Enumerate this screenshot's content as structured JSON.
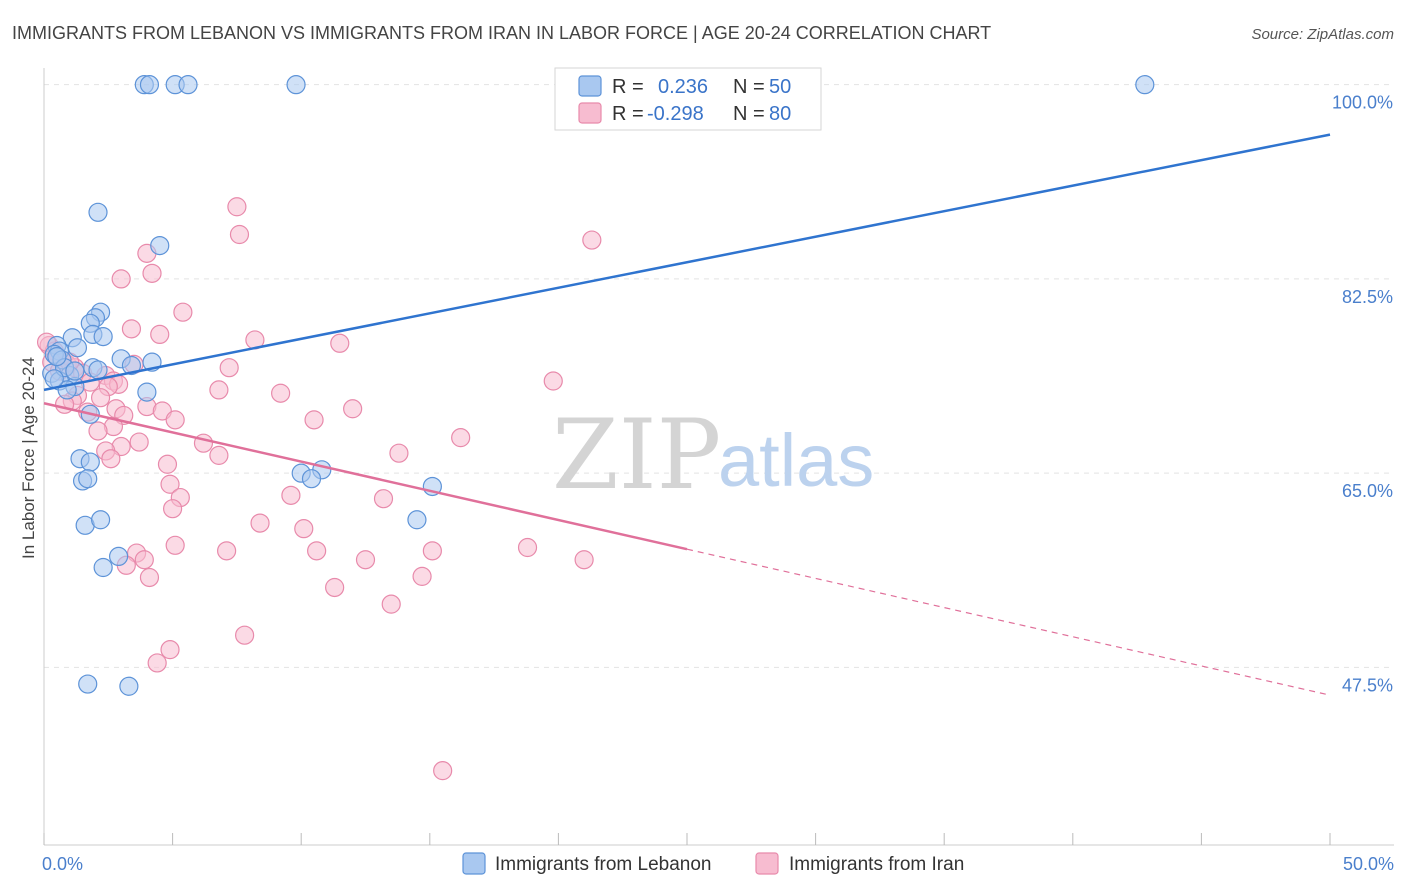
{
  "title": "IMMIGRANTS FROM LEBANON VS IMMIGRANTS FROM IRAN IN LABOR FORCE | AGE 20-24 CORRELATION CHART",
  "source": "Source: ZipAtlas.com",
  "watermark": {
    "zip": "ZIP",
    "atlas": "atlas"
  },
  "colors": {
    "lebanon_fill": "#a9c8f0",
    "lebanon_stroke": "#5d93d8",
    "lebanon_line": "#2f74cf",
    "iran_fill": "#f7bcd0",
    "iran_stroke": "#e88aab",
    "iran_line": "#e0709a",
    "grid": "#e3e3e3",
    "axis_text": "#4a7fcc"
  },
  "legend": {
    "rows": [
      {
        "r_label": "R =",
        "r_value": "0.236",
        "n_label": "N =",
        "n_value": "50"
      },
      {
        "r_label": "R =",
        "r_value": "-0.298",
        "n_label": "N =",
        "n_value": "80"
      }
    ]
  },
  "chart_data": {
    "type": "scatter",
    "title": "IMMIGRANTS FROM LEBANON VS IMMIGRANTS FROM IRAN IN LABOR FORCE | AGE 20-24 CORRELATION CHART",
    "xlabel": "",
    "ylabel": "In Labor Force | Age 20-24",
    "xlim": [
      0,
      50
    ],
    "ylim": [
      31.5,
      101.5
    ],
    "x_tick_labels": [
      "0.0%",
      "50.0%"
    ],
    "y_ticks": [
      47.5,
      65.0,
      82.5,
      100.0
    ],
    "y_tick_labels": [
      "47.5%",
      "65.0%",
      "82.5%",
      "100.0%"
    ],
    "grid": true,
    "legend_position": "top-center",
    "series": [
      {
        "name": "Immigrants from Lebanon",
        "r": 0.236,
        "n": 50,
        "trend": {
          "x": [
            0,
            50
          ],
          "y": [
            72.5,
            95.5
          ],
          "dashed_from": null
        },
        "points": [
          [
            3.9,
            100
          ],
          [
            4.1,
            100
          ],
          [
            5.1,
            100
          ],
          [
            5.6,
            100
          ],
          [
            9.8,
            100
          ],
          [
            42.8,
            100
          ],
          [
            2.1,
            88.5
          ],
          [
            4.5,
            85.5
          ],
          [
            2.2,
            79.5
          ],
          [
            2.0,
            79.0
          ],
          [
            1.8,
            78.5
          ],
          [
            1.9,
            77.5
          ],
          [
            2.3,
            77.3
          ],
          [
            1.1,
            77.2
          ],
          [
            0.5,
            76.5
          ],
          [
            1.3,
            76.3
          ],
          [
            0.6,
            76.0
          ],
          [
            0.4,
            75.7
          ],
          [
            0.7,
            75.2
          ],
          [
            3.0,
            75.3
          ],
          [
            4.2,
            75.0
          ],
          [
            1.9,
            74.5
          ],
          [
            2.1,
            74.3
          ],
          [
            3.4,
            74.7
          ],
          [
            0.3,
            74.0
          ],
          [
            1.0,
            73.8
          ],
          [
            0.6,
            73.3
          ],
          [
            1.2,
            72.8
          ],
          [
            0.9,
            72.5
          ],
          [
            4.0,
            72.3
          ],
          [
            1.8,
            70.3
          ],
          [
            1.4,
            66.3
          ],
          [
            1.8,
            66.0
          ],
          [
            1.5,
            64.3
          ],
          [
            1.7,
            64.5
          ],
          [
            10.0,
            65.0
          ],
          [
            10.8,
            65.3
          ],
          [
            10.4,
            64.5
          ],
          [
            15.1,
            63.8
          ],
          [
            1.6,
            60.3
          ],
          [
            2.2,
            60.8
          ],
          [
            14.5,
            60.8
          ],
          [
            2.9,
            57.5
          ],
          [
            2.3,
            56.5
          ],
          [
            1.7,
            46.0
          ],
          [
            3.3,
            45.8
          ],
          [
            0.8,
            74.5
          ],
          [
            0.5,
            75.5
          ],
          [
            1.2,
            74.2
          ],
          [
            0.4,
            73.5
          ]
        ]
      },
      {
        "name": "Immigrants from Iran",
        "r": -0.298,
        "n": 80,
        "trend": {
          "x": [
            0,
            50
          ],
          "y": [
            71.3,
            45.0
          ],
          "dashed_from": 25
        },
        "points": [
          [
            7.5,
            89.0
          ],
          [
            7.6,
            86.5
          ],
          [
            21.3,
            86.0
          ],
          [
            4.0,
            84.8
          ],
          [
            4.2,
            83.0
          ],
          [
            3.0,
            82.5
          ],
          [
            5.4,
            79.5
          ],
          [
            3.4,
            78.0
          ],
          [
            4.5,
            77.5
          ],
          [
            8.2,
            77.0
          ],
          [
            11.5,
            76.7
          ],
          [
            0.2,
            76.5
          ],
          [
            0.4,
            76.0
          ],
          [
            0.5,
            75.5
          ],
          [
            0.7,
            75.2
          ],
          [
            0.3,
            75.0
          ],
          [
            0.9,
            74.8
          ],
          [
            1.2,
            74.5
          ],
          [
            0.6,
            74.2
          ],
          [
            1.5,
            74.0
          ],
          [
            3.5,
            74.8
          ],
          [
            7.2,
            74.5
          ],
          [
            2.4,
            73.8
          ],
          [
            2.7,
            73.3
          ],
          [
            2.9,
            73.0
          ],
          [
            1.8,
            73.2
          ],
          [
            2.5,
            72.8
          ],
          [
            19.8,
            73.3
          ],
          [
            6.8,
            72.5
          ],
          [
            9.2,
            72.2
          ],
          [
            1.3,
            72.0
          ],
          [
            1.1,
            71.5
          ],
          [
            2.2,
            71.8
          ],
          [
            0.8,
            71.2
          ],
          [
            1.7,
            70.5
          ],
          [
            2.8,
            70.8
          ],
          [
            4.0,
            71.0
          ],
          [
            12.0,
            70.8
          ],
          [
            4.6,
            70.6
          ],
          [
            3.1,
            70.2
          ],
          [
            5.1,
            69.8
          ],
          [
            10.5,
            69.8
          ],
          [
            2.7,
            69.2
          ],
          [
            2.1,
            68.8
          ],
          [
            16.2,
            68.2
          ],
          [
            3.7,
            67.8
          ],
          [
            6.2,
            67.7
          ],
          [
            3.0,
            67.4
          ],
          [
            2.4,
            67.0
          ],
          [
            2.6,
            66.3
          ],
          [
            6.8,
            66.6
          ],
          [
            13.8,
            66.8
          ],
          [
            4.8,
            65.8
          ],
          [
            4.9,
            64.0
          ],
          [
            5.3,
            62.8
          ],
          [
            9.6,
            63.0
          ],
          [
            13.2,
            62.7
          ],
          [
            5.0,
            61.8
          ],
          [
            8.4,
            60.5
          ],
          [
            10.1,
            60.0
          ],
          [
            5.1,
            58.5
          ],
          [
            7.1,
            58.0
          ],
          [
            10.6,
            58.0
          ],
          [
            15.1,
            58.0
          ],
          [
            18.8,
            58.3
          ],
          [
            3.6,
            57.8
          ],
          [
            3.9,
            57.2
          ],
          [
            12.5,
            57.2
          ],
          [
            21.0,
            57.2
          ],
          [
            3.2,
            56.7
          ],
          [
            4.1,
            55.6
          ],
          [
            14.7,
            55.7
          ],
          [
            11.3,
            54.7
          ],
          [
            13.5,
            53.2
          ],
          [
            7.8,
            50.4
          ],
          [
            4.9,
            49.1
          ],
          [
            4.4,
            47.9
          ],
          [
            15.5,
            38.2
          ],
          [
            0.1,
            76.8
          ],
          [
            1.0,
            75.0
          ]
        ]
      }
    ]
  }
}
